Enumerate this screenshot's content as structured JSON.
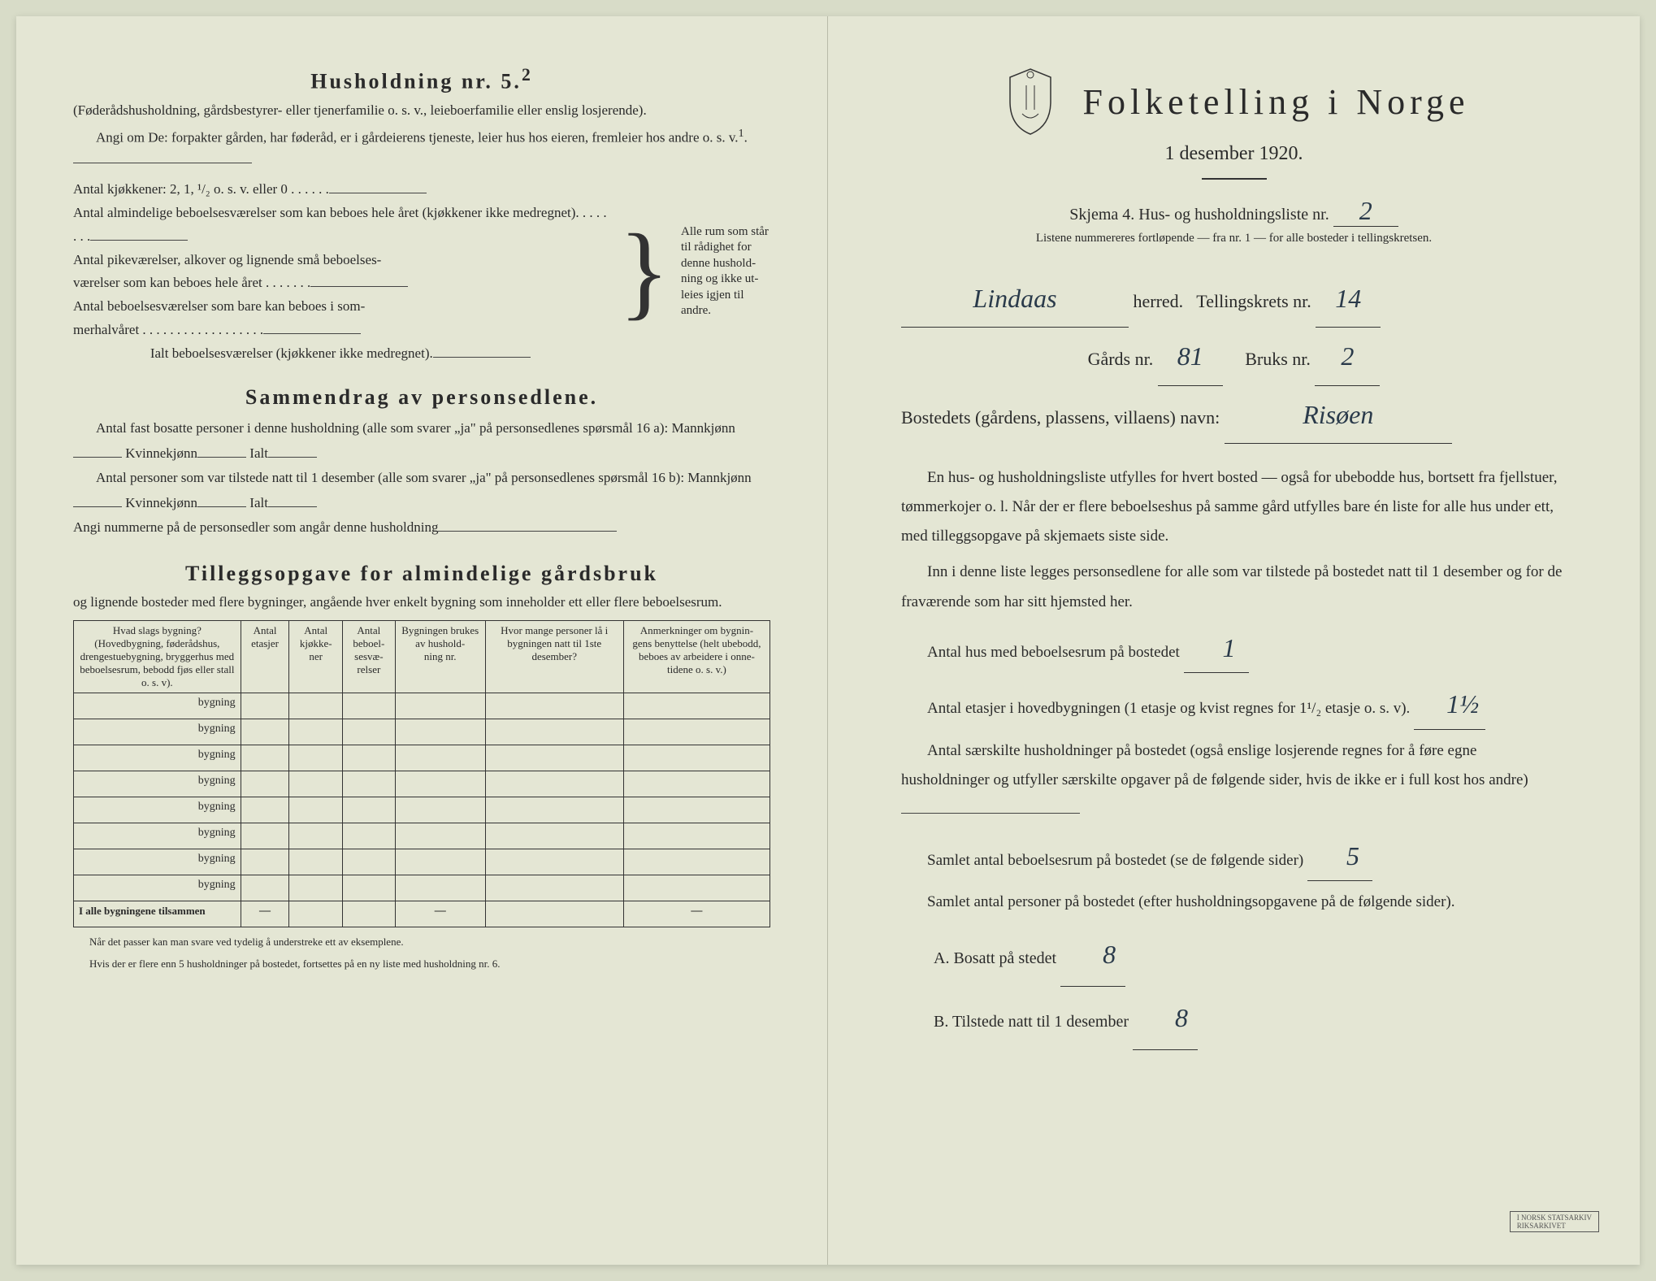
{
  "left": {
    "husholdning_title": "Husholdning nr. 5.",
    "husholdning_sup": "2",
    "husholdning_sub": "(Føderådshusholdning, gårdsbestyrer- eller tjenerfamilie o. s. v., leieboerfamilie eller enslig losjerende).",
    "angi_line1": "Angi om De:  forpakter gården, har føderåd, er i gårdeierens tjeneste, leier hus hos eieren, fremleier hos andre o. s. v.",
    "antal_kjokkener": "Antal kjøkkener: 2, 1, ¹/₂ o. s. v. eller 0 . . . . . .",
    "antal_almindelige": "Antal almindelige beboelsesværelser som kan beboes hele året (kjøkkener ikke medregnet). . . . . . . .",
    "antal_pike": "Antal pikeværelser, alkover og lignende små beboelses-\nværelser som kan beboes hele året . . . . . . .",
    "antal_sommer": "Antal beboelsesværelser som bare kan beboes i som-\nmerhalvåret . . . . . . . . . . . . . . . . . .",
    "ialt_line": "Ialt beboelsesværelser  (kjøkkener ikke medregnet).",
    "side_note": "Alle rum som står til rådighet for denne hushold-\nning og ikke ut-\nleies igjen til andre.",
    "sammendrag_title": "Sammendrag av personsedlene.",
    "sammendrag_1": "Antal fast bosatte personer i denne husholdning (alle som svarer „ja\" på personsedlenes spørsmål 16 a): Mannkjønn",
    "kvinne": "Kvinnekjønn",
    "ialt": "Ialt",
    "sammendrag_2": "Antal personer som var tilstede natt til 1 desember (alle som svarer „ja\" på personsedlenes spørsmål 16 b): Mannkjønn",
    "angi_nummerne": "Angi nummerne på de personsedler som angår denne husholdning",
    "tillegg_title": "Tilleggsopgave for almindelige gårdsbruk",
    "tillegg_sub": "og lignende bosteder med flere bygninger, angående hver enkelt bygning som inneholder ett eller flere beboelsesrum.",
    "table": {
      "headers": [
        "Hvad slags bygning?\n(Hovedbygning, føderådshus, drengestuebygning, bryggerhus med beboelsesrum, bebodd fjøs eller stall o. s. v).",
        "Antal etasjer",
        "Antal kjøkke-\nner",
        "Antal beboel-\nsesvæ-\nrelser",
        "Bygningen brukes av hushold-\nning nr.",
        "Hvor mange personer lå i bygningen natt til 1ste desember?",
        "Anmerkninger om bygnin-\ngens benyttelse (helt ubebodd, beboes av arbeidere i onne-\ntidene o. s. v.)"
      ],
      "row_label": "bygning",
      "total_label": "I alle bygningene tilsammen"
    },
    "footnote1": "Når det passer kan man svare ved tydelig å understreke ett av eksemplene.",
    "footnote2": "Hvis der er flere enn 5 husholdninger på bostedet, fortsettes på en ny liste med husholdning nr. 6."
  },
  "right": {
    "main_title": "Folketelling  i  Norge",
    "date": "1 desember 1920.",
    "skjema": "Skjema 4.  Hus- og husholdningsliste nr.",
    "skjema_val": "2",
    "listene": "Listene nummereres fortløpende — fra nr. 1 — for alle bosteder i tellingskretsen.",
    "herred_val": "Lindaas",
    "herred_label": "herred.",
    "tellingskrets_label": "Tellingskrets nr.",
    "tellingskrets_val": "14",
    "gards_label": "Gårds nr.",
    "gards_val": "81",
    "bruks_label": "Bruks nr.",
    "bruks_val": "2",
    "bosted_label": "Bostedets (gårdens, plassens, villaens) navn:",
    "bosted_val": "Risøen",
    "para1": "En hus- og husholdningsliste utfylles for hvert bosted — også for ubebodde hus, bortsett fra fjellstuer, tømmerkojer o. l.  Når der er flere beboelseshus på samme gård utfylles bare én liste for alle hus under ett, med tilleggsopgave på skjemaets siste side.",
    "para2": "Inn i denne liste legges personsedlene for alle som var tilstede på bostedet natt til 1 desember og for de fraværende som har sitt hjemsted her.",
    "antal_hus_label": "Antal hus med beboelsesrum på bostedet",
    "antal_hus_val": "1",
    "antal_etasjer_label": "Antal etasjer i hovedbygningen (1 etasje og kvist regnes for 1¹/₂ etasje o. s. v).",
    "antal_etasjer_val": "1½",
    "antal_saerskilte": "Antal særskilte husholdninger på bostedet (også enslige losjerende regnes for å føre egne husholdninger og utfyller særskilte opgaver på de følgende sider, hvis de ikke er i full kost hos andre)",
    "samlet_rum_label": "Samlet antal beboelsesrum på bostedet (se de følgende sider)",
    "samlet_rum_val": "5",
    "samlet_personer_label": "Samlet antal personer på bostedet (efter husholdningsopgavene på de følgende sider).",
    "a_label": "A.  Bosatt på stedet",
    "a_val": "8",
    "b_label": "B.  Tilstede natt til 1 desember",
    "b_val": "8",
    "stamp": "I NORSK STATSARKIV\nRIKSARKIVET"
  }
}
